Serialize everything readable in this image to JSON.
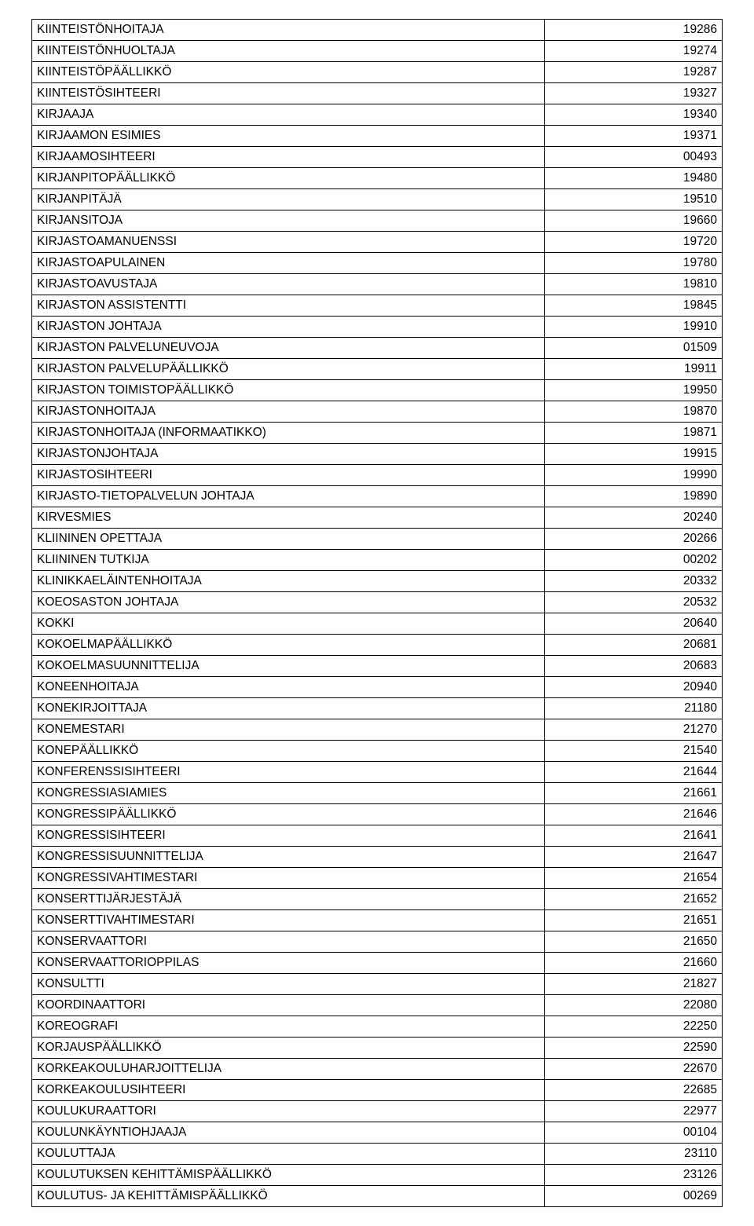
{
  "table": {
    "columns": [
      "name",
      "code"
    ],
    "col_widths_pct": [
      75,
      25
    ],
    "border_color": "#000000",
    "font_family": "Arial",
    "font_size_pt": 12,
    "text_color": "#000000",
    "background_color": "#ffffff",
    "rows": [
      {
        "name": "KIINTEISTÖNHOITAJA",
        "code": "19286"
      },
      {
        "name": "KIINTEISTÖNHUOLTAJA",
        "code": "19274"
      },
      {
        "name": "KIINTEISTÖPÄÄLLIKKÖ",
        "code": "19287"
      },
      {
        "name": "KIINTEISTÖSIHTEERI",
        "code": "19327"
      },
      {
        "name": "KIRJAAJA",
        "code": "19340"
      },
      {
        "name": "KIRJAAMON ESIMIES",
        "code": "19371"
      },
      {
        "name": "KIRJAAMOSIHTEERI",
        "code": "00493"
      },
      {
        "name": "KIRJANPITOPÄÄLLIKKÖ",
        "code": "19480"
      },
      {
        "name": "KIRJANPITÄJÄ",
        "code": "19510"
      },
      {
        "name": "KIRJANSITOJA",
        "code": "19660"
      },
      {
        "name": "KIRJASTOAMANUENSSI",
        "code": "19720"
      },
      {
        "name": "KIRJASTOAPULAINEN",
        "code": "19780"
      },
      {
        "name": "KIRJASTOAVUSTAJA",
        "code": "19810"
      },
      {
        "name": "KIRJASTON ASSISTENTTI",
        "code": "19845"
      },
      {
        "name": "KIRJASTON JOHTAJA",
        "code": "19910"
      },
      {
        "name": "KIRJASTON PALVELUNEUVOJA",
        "code": "01509"
      },
      {
        "name": "KIRJASTON PALVELUPÄÄLLIKKÖ",
        "code": "19911"
      },
      {
        "name": "KIRJASTON TOIMISTOPÄÄLLIKKÖ",
        "code": "19950"
      },
      {
        "name": "KIRJASTONHOITAJA",
        "code": "19870"
      },
      {
        "name": "KIRJASTONHOITAJA (INFORMAATIKKO)",
        "code": "19871"
      },
      {
        "name": "KIRJASTONJOHTAJA",
        "code": "19915"
      },
      {
        "name": "KIRJASTOSIHTEERI",
        "code": "19990"
      },
      {
        "name": "KIRJASTO-TIETOPALVELUN JOHTAJA",
        "code": "19890"
      },
      {
        "name": "KIRVESMIES",
        "code": "20240"
      },
      {
        "name": "KLIININEN OPETTAJA",
        "code": "20266"
      },
      {
        "name": "KLIININEN TUTKIJA",
        "code": "00202"
      },
      {
        "name": "KLINIKKAELÄINTENHOITAJA",
        "code": "20332"
      },
      {
        "name": "KOEOSASTON JOHTAJA",
        "code": "20532"
      },
      {
        "name": "KOKKI",
        "code": "20640"
      },
      {
        "name": "KOKOELMAPÄÄLLIKKÖ",
        "code": "20681"
      },
      {
        "name": "KOKOELMASUUNNITTELIJA",
        "code": "20683"
      },
      {
        "name": "KONEENHOITAJA",
        "code": "20940"
      },
      {
        "name": "KONEKIRJOITTAJA",
        "code": "21180"
      },
      {
        "name": "KONEMESTARI",
        "code": "21270"
      },
      {
        "name": "KONEPÄÄLLIKKÖ",
        "code": "21540"
      },
      {
        "name": "KONFERENSSISIHTEERI",
        "code": "21644"
      },
      {
        "name": "KONGRESSIASIAMIES",
        "code": "21661"
      },
      {
        "name": "KONGRESSIPÄÄLLIKKÖ",
        "code": "21646"
      },
      {
        "name": "KONGRESSISIHTEERI",
        "code": "21641"
      },
      {
        "name": "KONGRESSISUUNNITTELIJA",
        "code": "21647"
      },
      {
        "name": "KONGRESSIVAHTIMESTARI",
        "code": "21654"
      },
      {
        "name": "KONSERTTIJÄRJESTÄJÄ",
        "code": "21652"
      },
      {
        "name": "KONSERTTIVAHTIMESTARI",
        "code": "21651"
      },
      {
        "name": "KONSERVAATTORI",
        "code": "21650"
      },
      {
        "name": "KONSERVAATTORIOPPILAS",
        "code": "21660"
      },
      {
        "name": "KONSULTTI",
        "code": "21827"
      },
      {
        "name": "KOORDINAATTORI",
        "code": "22080"
      },
      {
        "name": "KOREOGRAFI",
        "code": "22250"
      },
      {
        "name": "KORJAUSPÄÄLLIKKÖ",
        "code": "22590"
      },
      {
        "name": "KORKEAKOULUHARJOITTELIJA",
        "code": "22670"
      },
      {
        "name": "KORKEAKOULUSIHTEERI",
        "code": "22685"
      },
      {
        "name": "KOULUKURAATTORI",
        "code": "22977"
      },
      {
        "name": "KOULUNKÄYNTIOHJAAJA",
        "code": "00104"
      },
      {
        "name": "KOULUTTAJA",
        "code": "23110"
      },
      {
        "name": "KOULUTUKSEN KEHITTÄMISPÄÄLLIKKÖ",
        "code": "23126"
      },
      {
        "name": "KOULUTUS- JA KEHITTÄMISPÄÄLLIKKÖ",
        "code": "00269"
      }
    ]
  }
}
